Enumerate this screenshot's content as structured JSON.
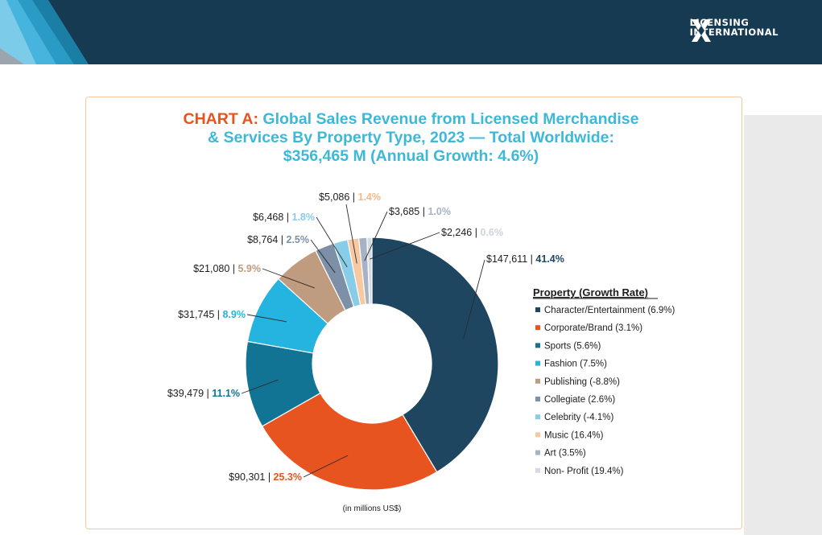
{
  "brand": {
    "line1": "LICENSING",
    "line2": "INTERNATIONAL"
  },
  "title": {
    "prefix": "CHART A:",
    "line1": " Global Sales Revenue from Licensed Merchandise",
    "line2": "& Services By Property Type, 2023 — Total Worldwide:",
    "line3": "$356,465 M (Annual Growth: 4.6%)"
  },
  "chart_data": {
    "type": "pie",
    "variant": "donut",
    "unit_note": "(in millions US$)",
    "legend_title": "Property (Growth Rate)",
    "slices": [
      {
        "name": "Character/Entertainment",
        "growth": "6.9%",
        "value": 147611,
        "value_label": "$147,611",
        "pct_label": "41.4%",
        "color": "#1e4660",
        "pct_color": "#1e4660"
      },
      {
        "name": "Corporate/Brand",
        "growth": "3.1%",
        "value": 90301,
        "value_label": "$90,301",
        "pct_label": "25.3%",
        "color": "#e8541f",
        "pct_color": "#e8541f"
      },
      {
        "name": "Sports",
        "growth": "5.6%",
        "value": 39479,
        "value_label": "$39,479",
        "pct_label": "11.1%",
        "color": "#127494",
        "pct_color": "#127494"
      },
      {
        "name": "Fashion",
        "growth": "7.5%",
        "value": 31745,
        "value_label": "$31,745",
        "pct_label": "8.9%",
        "color": "#25b3e0",
        "pct_color": "#25b3e0"
      },
      {
        "name": "Publishing",
        "growth": "-8.8%",
        "value": 21080,
        "value_label": "$21,080",
        "pct_label": "5.9%",
        "color": "#bf9b7f",
        "pct_color": "#bf9b7f"
      },
      {
        "name": "Collegiate",
        "growth": "2.6%",
        "value": 8764,
        "value_label": "$8,764",
        "pct_label": "2.5%",
        "color": "#7e8fa8",
        "pct_color": "#7e8fa8"
      },
      {
        "name": "Celebrity",
        "growth": "-4.1%",
        "value": 6468,
        "value_label": "$6,468",
        "pct_label": "1.8%",
        "color": "#88cde8",
        "pct_color": "#88cde8"
      },
      {
        "name": "Music",
        "growth": "16.4%",
        "value": 5086,
        "value_label": "$5,086",
        "pct_label": "1.4%",
        "color": "#f8c8a0",
        "pct_color": "#f6b987"
      },
      {
        "name": "Art",
        "growth": "3.5%",
        "value": 3685,
        "value_label": "$3,685",
        "pct_label": "1.0%",
        "color": "#a6b2c5",
        "pct_color": "#a6b2c5"
      },
      {
        "name": "Non- Profit",
        "growth": "19.4%",
        "value": 2246,
        "value_label": "$2,246",
        "pct_label": "0.6%",
        "color": "#d6dbe1",
        "pct_color": "#cfd5dc"
      }
    ]
  }
}
